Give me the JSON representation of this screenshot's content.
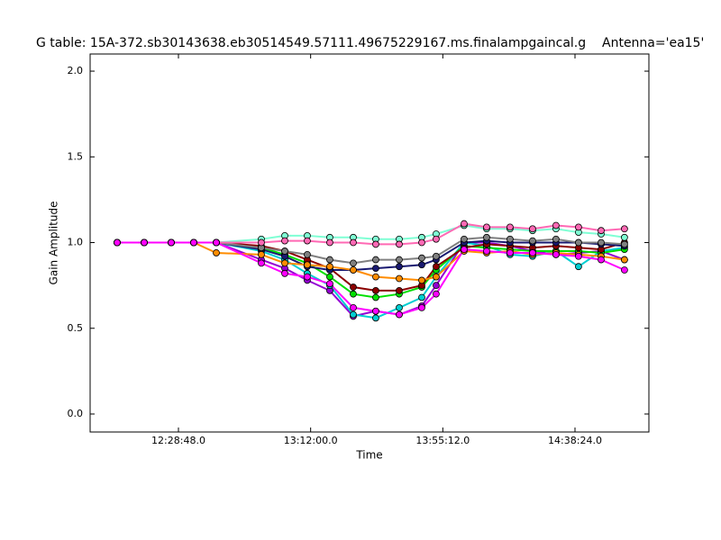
{
  "chart_data": {
    "type": "line",
    "title": "G table: 15A-372.sb30143638.eb30514549.57111.49675229167.ms.finalampgaincal.g",
    "antenna": "Antenna='ea15'",
    "xlabel": "Time",
    "ylabel": "Gain Amplitude",
    "x": [
      43726,
      44256,
      44786,
      45228,
      45670,
      46553,
      47013,
      47454,
      47896,
      48356,
      48797,
      49257,
      49699,
      49981,
      50529,
      50971,
      51430,
      51872,
      52331,
      52773,
      53216,
      53674
    ],
    "xlim": [
      43196,
      54153
    ],
    "xticks": [
      {
        "value": 44928,
        "label": "12:28:48.0"
      },
      {
        "value": 47520,
        "label": "13:12:00.0"
      },
      {
        "value": 50112,
        "label": "13:55:12.0"
      },
      {
        "value": 52704,
        "label": "14:38:24.0"
      }
    ],
    "ylim": [
      -0.105,
      2.1
    ],
    "yticks": [
      {
        "value": 0,
        "label": "0.0"
      },
      0.5,
      {
        "value": 1,
        "label": "1.0"
      },
      1.5,
      {
        "value": 2,
        "label": "2.0"
      }
    ],
    "series": [
      {
        "color": "#9400d3",
        "values": [
          1.0,
          1.0,
          1.0,
          1.0,
          1.0,
          0.9,
          0.85,
          0.78,
          0.72,
          0.57,
          0.6,
          0.58,
          0.63,
          0.75,
          1.0,
          1.0,
          0.98,
          0.95,
          0.93,
          0.94,
          0.95,
          0.9
        ]
      },
      {
        "color": "#00ced1",
        "values": [
          1.0,
          1.0,
          1.0,
          1.0,
          1.0,
          0.95,
          0.9,
          0.82,
          0.75,
          0.58,
          0.56,
          0.62,
          0.68,
          0.8,
          1.0,
          0.98,
          0.93,
          0.92,
          0.95,
          0.86,
          0.95,
          0.97
        ]
      },
      {
        "color": "#00e000",
        "values": [
          1.0,
          1.0,
          1.0,
          1.0,
          1.0,
          0.97,
          0.93,
          0.88,
          0.8,
          0.7,
          0.68,
          0.7,
          0.74,
          0.84,
          0.98,
          0.97,
          0.96,
          0.95,
          0.95,
          0.95,
          0.94,
          0.96
        ]
      },
      {
        "color": "#8b0000",
        "values": [
          1.0,
          1.0,
          1.0,
          1.0,
          1.0,
          0.98,
          0.95,
          0.9,
          0.85,
          0.74,
          0.72,
          0.72,
          0.75,
          0.86,
          0.97,
          0.99,
          0.98,
          0.97,
          0.98,
          0.97,
          0.96,
          1.0
        ]
      },
      {
        "color": "#191970",
        "values": [
          1.0,
          1.0,
          1.0,
          1.0,
          1.0,
          0.96,
          0.92,
          0.86,
          0.84,
          0.84,
          0.85,
          0.86,
          0.87,
          0.9,
          1.0,
          1.01,
          1.0,
          1.0,
          1.0,
          1.0,
          0.99,
          0.98
        ]
      },
      {
        "color": "#808080",
        "values": [
          1.0,
          1.0,
          1.0,
          1.0,
          1.0,
          0.97,
          0.95,
          0.93,
          0.9,
          0.88,
          0.9,
          0.9,
          0.91,
          0.92,
          1.02,
          1.03,
          1.02,
          1.01,
          1.02,
          1.0,
          1.0,
          0.99
        ]
      },
      {
        "color": "#ff8c00",
        "values": [
          1.0,
          1.0,
          1.0,
          1.0,
          0.94,
          0.93,
          0.88,
          0.87,
          0.86,
          0.84,
          0.8,
          0.79,
          0.78,
          0.8,
          0.95,
          0.94,
          0.95,
          0.93,
          0.94,
          0.93,
          0.92,
          0.9
        ]
      },
      {
        "color": "#7fffd4",
        "values": [
          1.0,
          1.0,
          1.0,
          1.0,
          1.0,
          1.02,
          1.04,
          1.04,
          1.03,
          1.03,
          1.02,
          1.02,
          1.03,
          1.05,
          1.1,
          1.08,
          1.08,
          1.07,
          1.08,
          1.06,
          1.05,
          1.03
        ]
      },
      {
        "color": "#ff69b4",
        "values": [
          1.0,
          1.0,
          1.0,
          1.0,
          1.0,
          1.0,
          1.01,
          1.01,
          1.0,
          1.0,
          0.99,
          0.99,
          1.0,
          1.02,
          1.11,
          1.09,
          1.09,
          1.08,
          1.1,
          1.09,
          1.07,
          1.08
        ]
      },
      {
        "color": "#ff00ff",
        "values": [
          1.0,
          1.0,
          1.0,
          1.0,
          1.0,
          0.88,
          0.82,
          0.8,
          0.76,
          0.62,
          0.6,
          0.58,
          0.62,
          0.7,
          0.96,
          0.95,
          0.94,
          0.94,
          0.93,
          0.92,
          0.9,
          0.84
        ]
      }
    ]
  }
}
